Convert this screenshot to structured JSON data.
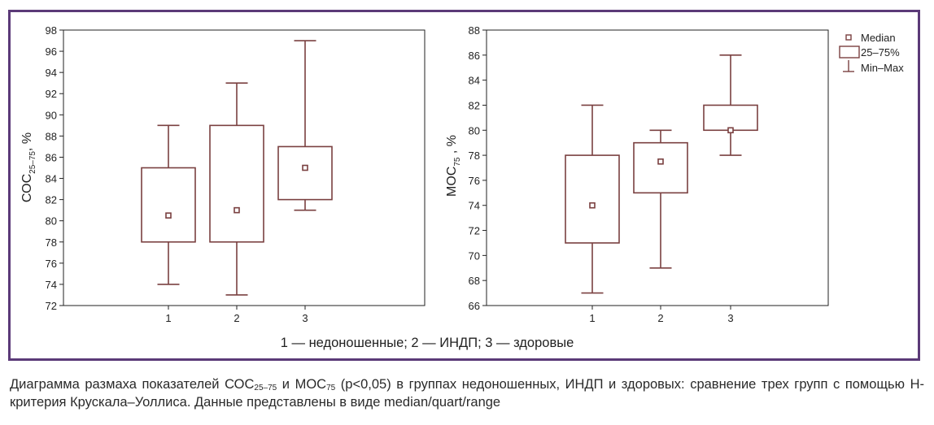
{
  "chart_data": [
    {
      "type": "boxplot",
      "ylabel_main": "СОС",
      "ylabel_sub": "25–75",
      "ylabel_unit": ", %",
      "categories": [
        "1",
        "2",
        "3"
      ],
      "ylim": [
        72,
        98
      ],
      "yticks": [
        "72",
        "74",
        "76",
        "78",
        "80",
        "82",
        "84",
        "86",
        "88",
        "90",
        "92",
        "94",
        "96",
        "98"
      ],
      "grid": false,
      "boxes": [
        {
          "group": "1",
          "median": 80.5,
          "q1": 78,
          "q3": 85,
          "min": 74,
          "max": 89
        },
        {
          "group": "2",
          "median": 81,
          "q1": 78,
          "q3": 89,
          "min": 73,
          "max": 93
        },
        {
          "group": "3",
          "median": 85,
          "q1": 82,
          "q3": 87,
          "min": 81,
          "max": 97
        }
      ]
    },
    {
      "type": "boxplot",
      "ylabel_main": "МОС",
      "ylabel_sub": "75",
      "ylabel_unit": " , %",
      "categories": [
        "1",
        "2",
        "3"
      ],
      "ylim": [
        66,
        88
      ],
      "yticks": [
        "66",
        "68",
        "70",
        "72",
        "74",
        "76",
        "78",
        "80",
        "82",
        "84",
        "86",
        "88"
      ],
      "grid": false,
      "boxes": [
        {
          "group": "1",
          "median": 74,
          "q1": 71,
          "q3": 78,
          "min": 67,
          "max": 82
        },
        {
          "group": "2",
          "median": 77.5,
          "q1": 75,
          "q3": 79,
          "min": 69,
          "max": 80
        },
        {
          "group": "3",
          "median": 80,
          "q1": 80,
          "q3": 82,
          "min": 78,
          "max": 86
        }
      ],
      "legend": {
        "placement": "top-right",
        "items": [
          "Median",
          "25–75%",
          "Min–Max"
        ]
      }
    }
  ],
  "footnote": "1 — недоношенные; 2 — ИНДП; 3 — здоровые",
  "caption": {
    "part1": "Диаграмма размаха показателей СОС",
    "sub1": "25–75",
    "part2": " и МОС",
    "sub2": "75",
    "part3": " (p<0,05) в группах недоношенных, ИНДП и здоровых: сравнение трех групп с помощью Н-критерия Крускала–Уоллиса. Данные представлены в виде median/quart/range"
  },
  "colors": {
    "frame": "#5b3a78",
    "box_stroke": "#7a4040",
    "axis": "#222222"
  }
}
